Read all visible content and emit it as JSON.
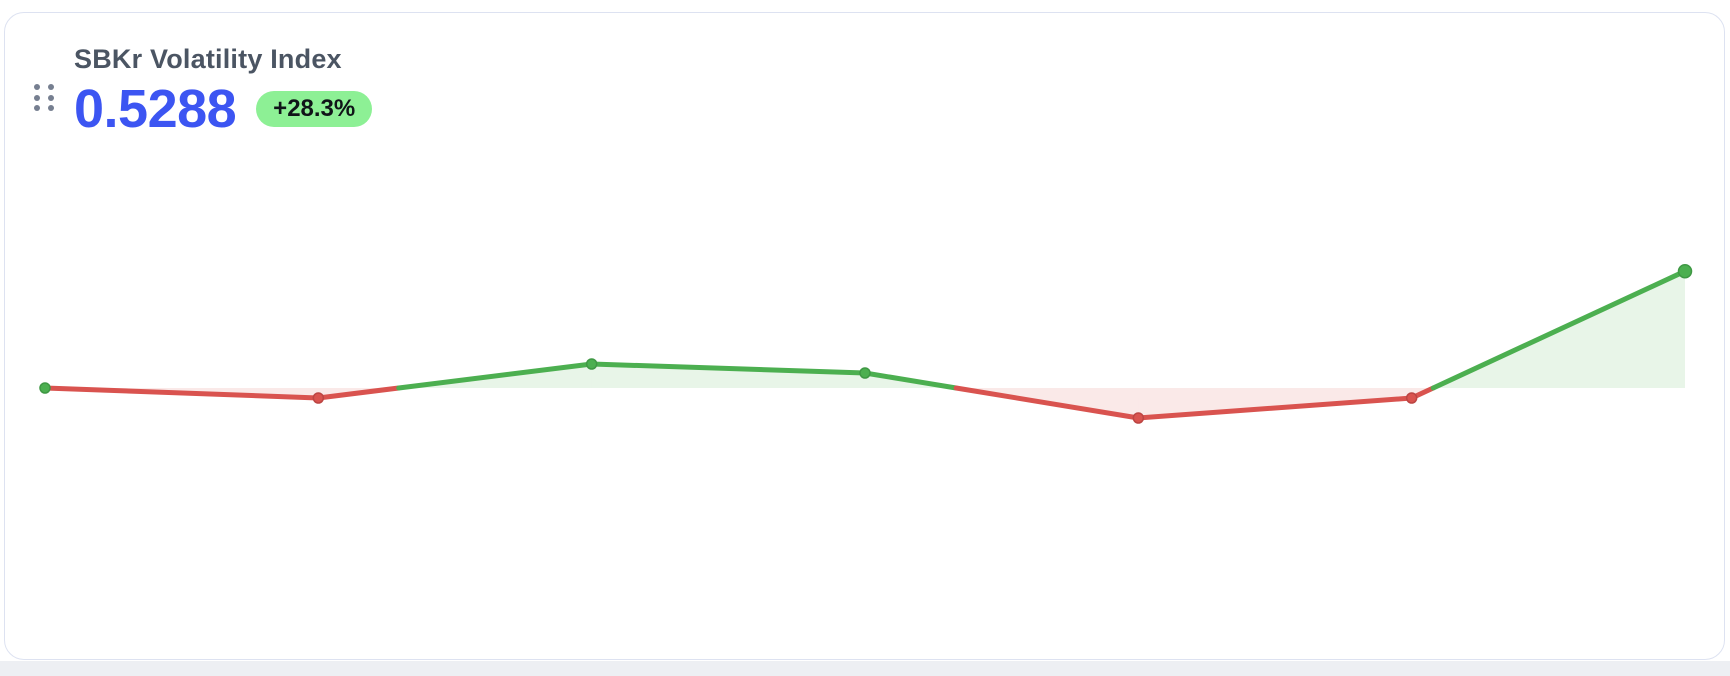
{
  "card": {
    "title": "SBKr Volatility Index",
    "value": "0.5288",
    "change_label": "+28.3%"
  },
  "colors": {
    "value_text": "#3c55f2",
    "badge_bg": "#8df095",
    "badge_text": "#101418",
    "title_text": "#4b5563"
  },
  "chart_data": {
    "type": "area",
    "title": "SBKr Volatility Index sparkline",
    "values": [
      0.412,
      0.402,
      0.436,
      0.427,
      0.382,
      0.402,
      0.5288
    ],
    "baseline": 0.412,
    "point_count": 7,
    "ylim": [
      0.37,
      0.54
    ],
    "grid": false,
    "legend": false,
    "axis_labels_visible": false,
    "colors": {
      "up": "#4caf50",
      "down": "#d9534f",
      "up_fill": "rgba(76,175,80,0.13)",
      "down_fill": "rgba(217,83,79,0.13)",
      "up_dot_stroke": "#3f9844",
      "down_dot_stroke": "#bc4543"
    }
  }
}
